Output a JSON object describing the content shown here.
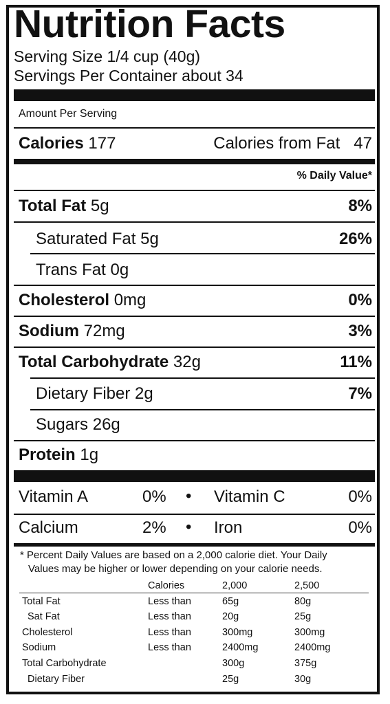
{
  "header": {
    "title": "Nutrition Facts",
    "serving_size": "Serving Size 1/4 cup (40g)",
    "servings_per_container": "Servings Per Container about 34"
  },
  "amount_per_serving": "Amount Per Serving",
  "calories": {
    "label": "Calories",
    "value": "177",
    "from_fat_label": "Calories from Fat",
    "from_fat_value": "47"
  },
  "daily_value_header": "% Daily Value*",
  "nutrients": [
    {
      "label": "Total Fat",
      "amount": "5g",
      "dv": "8%"
    },
    {
      "label": "Saturated Fat",
      "amount": "5g",
      "dv": "26%"
    },
    {
      "label": "Trans Fat",
      "amount": "0g",
      "dv": ""
    },
    {
      "label": "Cholesterol",
      "amount": "0mg",
      "dv": "0%"
    },
    {
      "label": "Sodium",
      "amount": "72mg",
      "dv": "3%"
    },
    {
      "label": "Total Carbohydrate",
      "amount": "32g",
      "dv": "11%"
    },
    {
      "label": "Dietary Fiber",
      "amount": "2g",
      "dv": "7%"
    },
    {
      "label": "Sugars",
      "amount": "26g",
      "dv": ""
    },
    {
      "label": "Protein",
      "amount": "1g",
      "dv": ""
    }
  ],
  "vitamins": [
    {
      "left_label": "Vitamin A",
      "left_value": "0%",
      "right_label": "Vitamin C",
      "right_value": "0%"
    },
    {
      "left_label": "Calcium",
      "left_value": "2%",
      "right_label": "Iron",
      "right_value": "0%"
    }
  ],
  "bullet": "•",
  "footnote": {
    "line1": "* Percent Daily Values are based on a 2,000 calorie diet. Your Daily",
    "line2": "Values may be higher or lower depending on your calorie needs."
  },
  "reference_table": {
    "header": [
      "",
      "Calories",
      "2,000",
      "2,500"
    ],
    "rows": [
      [
        "Total Fat",
        "Less than",
        "65g",
        "80g"
      ],
      [
        "Sat Fat",
        "Less than",
        "20g",
        "25g"
      ],
      [
        "Cholesterol",
        "Less than",
        "300mg",
        "300mg"
      ],
      [
        "Sodium",
        "Less than",
        "2400mg",
        "2400mg"
      ],
      [
        "Total Carbohydrate",
        "",
        "300g",
        "375g"
      ],
      [
        "Dietary Fiber",
        "",
        "25g",
        "30g"
      ]
    ]
  }
}
